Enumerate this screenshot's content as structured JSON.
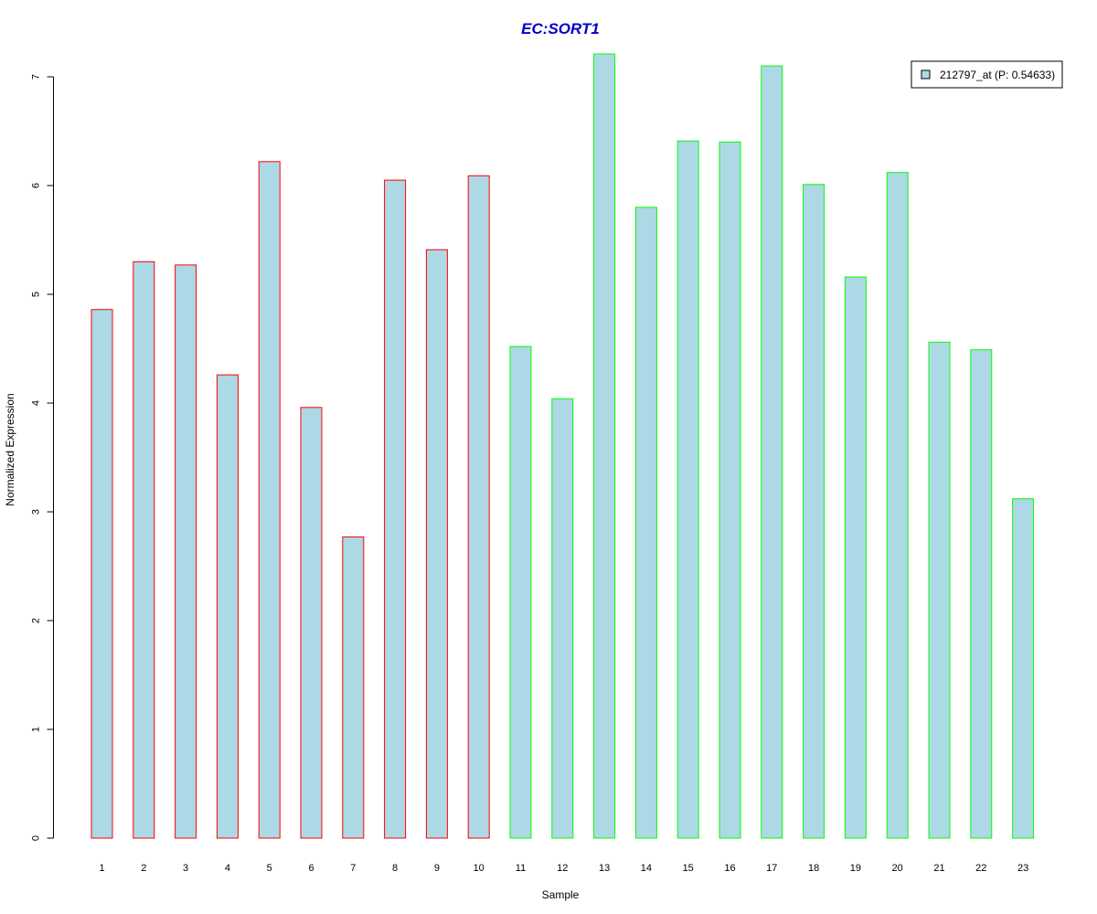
{
  "chart_data": {
    "type": "bar",
    "title": "EC:SORT1",
    "xlabel": "Sample",
    "ylabel": "Normalized Expression",
    "ylim": [
      0,
      7
    ],
    "yticks": [
      "0",
      "1",
      "2",
      "3",
      "4",
      "5",
      "6",
      "7"
    ],
    "categories": [
      "1",
      "2",
      "3",
      "4",
      "5",
      "6",
      "7",
      "8",
      "9",
      "10",
      "11",
      "12",
      "13",
      "14",
      "15",
      "16",
      "17",
      "18",
      "19",
      "20",
      "21",
      "22",
      "23"
    ],
    "series": [
      {
        "name": "212797_at (P: 0.54633)",
        "values": [
          4.86,
          5.3,
          5.27,
          4.26,
          6.22,
          3.96,
          2.77,
          6.05,
          5.41,
          6.09,
          4.52,
          4.04,
          7.21,
          5.8,
          6.41,
          6.4,
          7.1,
          6.01,
          5.16,
          6.12,
          4.56,
          4.49,
          3.12
        ]
      }
    ],
    "bar_fill": "#add8e6",
    "border_colors": [
      "#ff0000",
      "#ff0000",
      "#ff0000",
      "#ff0000",
      "#ff0000",
      "#ff0000",
      "#ff0000",
      "#ff0000",
      "#ff0000",
      "#ff0000",
      "#00ff00",
      "#00ff00",
      "#00ff00",
      "#00ff00",
      "#00ff00",
      "#00ff00",
      "#00ff00",
      "#00ff00",
      "#00ff00",
      "#00ff00",
      "#00ff00",
      "#00ff00",
      "#00ff00"
    ],
    "title_color": "#0000cc",
    "grid": false,
    "legend_position": "top-right"
  }
}
